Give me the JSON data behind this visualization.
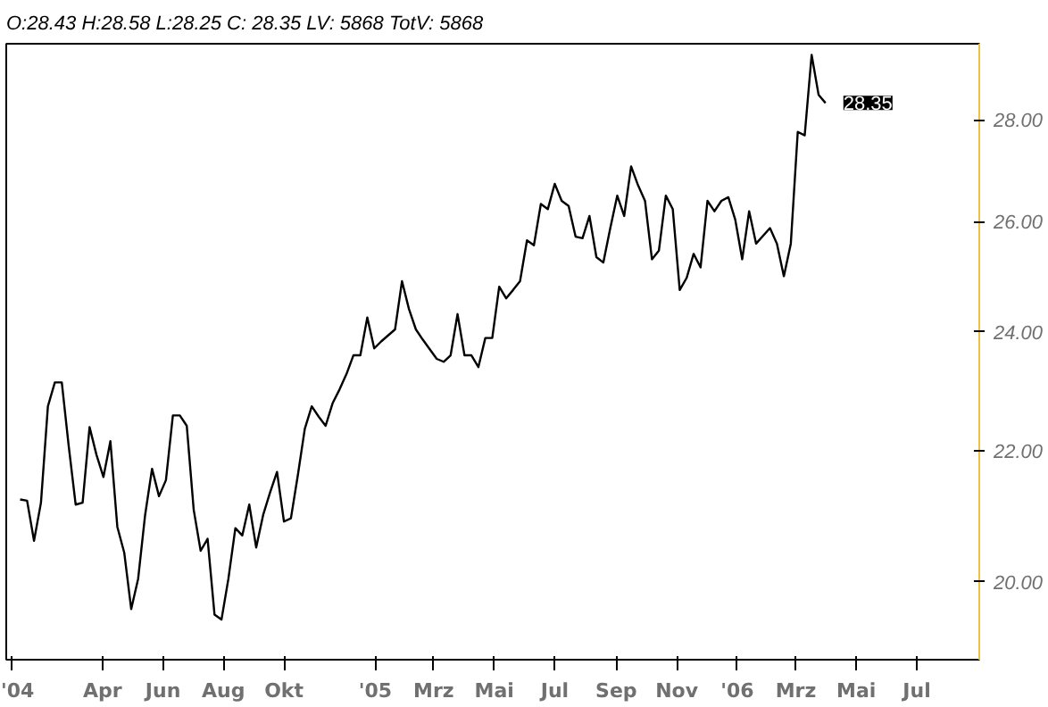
{
  "chart_data": {
    "type": "line",
    "title": "O:28.43 H:28.58 L:28.25 C: 28.35 LV: 5868 TotV: 5868",
    "x": [
      "2004-01-09",
      "2004-01-16",
      "2004-01-23",
      "2004-01-30",
      "2004-02-06",
      "2004-02-13",
      "2004-02-20",
      "2004-02-27",
      "2004-03-05",
      "2004-03-12",
      "2004-03-19",
      "2004-03-26",
      "2004-04-02",
      "2004-04-09",
      "2004-04-16",
      "2004-04-23",
      "2004-04-30",
      "2004-05-07",
      "2004-05-14",
      "2004-05-21",
      "2004-05-28",
      "2004-06-04",
      "2004-06-11",
      "2004-06-18",
      "2004-06-25",
      "2004-07-02",
      "2004-07-09",
      "2004-07-16",
      "2004-07-23",
      "2004-07-30",
      "2004-08-06",
      "2004-08-13",
      "2004-08-20",
      "2004-08-27",
      "2004-09-03",
      "2004-09-10",
      "2004-09-17",
      "2004-09-24",
      "2004-10-01",
      "2004-10-08",
      "2004-10-15",
      "2004-10-22",
      "2004-10-29",
      "2004-11-05",
      "2004-11-12",
      "2004-11-19",
      "2004-11-26",
      "2004-12-03",
      "2004-12-10",
      "2004-12-17",
      "2004-12-24",
      "2004-12-31",
      "2005-01-07",
      "2005-01-21",
      "2005-01-28",
      "2005-02-04",
      "2005-02-11",
      "2005-02-18",
      "2005-03-04",
      "2005-03-11",
      "2005-03-18",
      "2005-03-25",
      "2005-04-01",
      "2005-04-08",
      "2005-04-15",
      "2005-04-22",
      "2005-04-29",
      "2005-05-06",
      "2005-05-13",
      "2005-05-20",
      "2005-05-27",
      "2005-06-03",
      "2005-06-10",
      "2005-06-17",
      "2005-06-24",
      "2005-07-01",
      "2005-07-08",
      "2005-07-15",
      "2005-07-22",
      "2005-07-29",
      "2005-08-05",
      "2005-08-12",
      "2005-08-19",
      "2005-08-26",
      "2005-09-02",
      "2005-09-09",
      "2005-09-16",
      "2005-09-23",
      "2005-09-30",
      "2005-10-07",
      "2005-10-14",
      "2005-10-21",
      "2005-10-28",
      "2005-11-04",
      "2005-11-11",
      "2005-11-18",
      "2005-11-25",
      "2005-12-02",
      "2005-12-09",
      "2005-12-16",
      "2005-12-23",
      "2005-12-30",
      "2006-01-06",
      "2006-01-13",
      "2006-01-20",
      "2006-02-03",
      "2006-02-10",
      "2006-02-17",
      "2006-02-24",
      "2006-03-03",
      "2006-03-10",
      "2006-03-17",
      "2006-03-24",
      "2006-03-31"
    ],
    "series": [
      {
        "color": "#000000",
        "values": [
          21.24,
          21.22,
          20.61,
          21.19,
          22.73,
          23.13,
          23.13,
          22.08,
          21.16,
          21.19,
          22.39,
          21.94,
          21.59,
          22.16,
          20.82,
          20.43,
          19.61,
          20.05,
          21.0,
          21.72,
          21.29,
          21.54,
          22.58,
          22.58,
          22.41,
          21.08,
          20.46,
          20.64,
          19.53,
          19.46,
          20.05,
          20.8,
          20.69,
          21.16,
          20.51,
          21.0,
          21.35,
          21.67,
          20.9,
          20.95,
          21.62,
          22.36,
          22.73,
          22.56,
          22.41,
          22.78,
          23.01,
          23.27,
          23.59,
          23.59,
          24.25,
          23.71,
          23.83,
          24.04,
          24.9,
          24.4,
          24.04,
          23.86,
          23.53,
          23.48,
          23.59,
          24.31,
          23.59,
          23.59,
          23.39,
          23.89,
          23.89,
          24.8,
          24.59,
          24.74,
          24.9,
          25.65,
          25.56,
          26.34,
          26.24,
          26.73,
          26.4,
          26.3,
          25.72,
          25.69,
          26.11,
          25.34,
          25.24,
          25.88,
          26.5,
          26.11,
          27.07,
          26.7,
          26.4,
          25.3,
          25.46,
          26.5,
          26.24,
          24.74,
          24.96,
          25.4,
          25.15,
          26.4,
          26.2,
          26.4,
          26.47,
          26.04,
          25.3,
          26.2,
          25.59,
          25.88,
          25.59,
          24.99,
          25.59,
          27.76,
          27.69,
          29.36,
          28.52,
          28.35
        ]
      }
    ],
    "xlim": [
      "2003-12-26",
      "2006-09-02"
    ],
    "xticks": [
      {
        "value": "2004-01-01",
        "label": "'04"
      },
      {
        "value": "2004-04-01",
        "label": "Apr"
      },
      {
        "value": "2004-06-01",
        "label": "Jun"
      },
      {
        "value": "2004-08-01",
        "label": "Aug"
      },
      {
        "value": "2004-10-01",
        "label": "Okt"
      },
      {
        "value": "2005-01-01",
        "label": "'05"
      },
      {
        "value": "2005-03-01",
        "label": "Mrz"
      },
      {
        "value": "2005-05-01",
        "label": "Mai"
      },
      {
        "value": "2005-07-01",
        "label": "Jul"
      },
      {
        "value": "2005-09-01",
        "label": "Sep"
      },
      {
        "value": "2005-11-01",
        "label": "Nov"
      },
      {
        "value": "2006-01-01",
        "label": "'06"
      },
      {
        "value": "2006-03-01",
        "label": "Mrz"
      },
      {
        "value": "2006-05-01",
        "label": "Mai"
      },
      {
        "value": "2006-07-01",
        "label": "Jul"
      }
    ],
    "ylim": [
      18.9,
      29.6
    ],
    "yticks": [
      {
        "value": 20,
        "label": "20.00"
      },
      {
        "value": 22,
        "label": "22.00"
      },
      {
        "value": 24,
        "label": "24.00"
      },
      {
        "value": 26,
        "label": "26.00"
      },
      {
        "value": 28,
        "label": "28.00"
      }
    ],
    "log": "y",
    "grid": false,
    "annotations": [
      {
        "text": "28.35",
        "x": "2006-03-31",
        "y": 28.35
      }
    ]
  }
}
